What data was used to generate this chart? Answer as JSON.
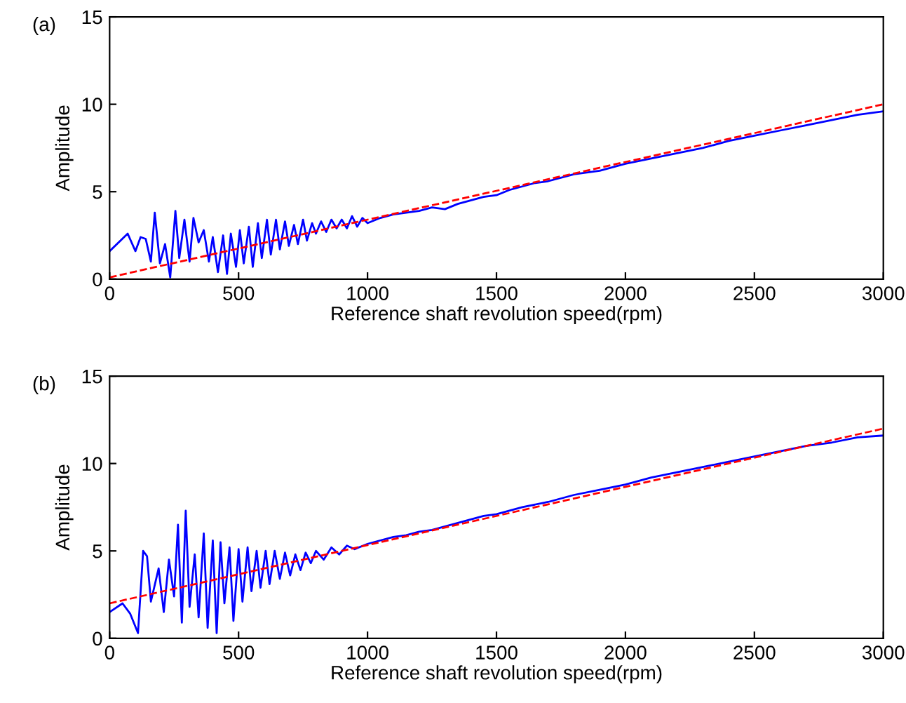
{
  "chart_data": [
    {
      "type": "line",
      "annotations": [
        "(a)"
      ],
      "xlabel": "Reference shaft revolution speed(rpm)",
      "ylabel": "Amplitude",
      "xlim": [
        0,
        3000
      ],
      "ylim": [
        0,
        15
      ],
      "xticks": [
        0,
        500,
        1000,
        1500,
        2000,
        2500,
        3000
      ],
      "yticks": [
        0,
        5,
        10,
        15
      ],
      "grid": false,
      "legend": false,
      "series": [
        {
          "color": "#0000ff",
          "line_style": "solid",
          "x": [
            0,
            70,
            100,
            120,
            140,
            160,
            175,
            195,
            215,
            235,
            255,
            270,
            290,
            310,
            325,
            345,
            365,
            385,
            400,
            420,
            440,
            455,
            470,
            490,
            505,
            520,
            540,
            555,
            575,
            590,
            610,
            625,
            645,
            660,
            680,
            695,
            715,
            730,
            750,
            765,
            785,
            800,
            820,
            840,
            860,
            880,
            900,
            920,
            940,
            960,
            980,
            1000,
            1050,
            1100,
            1150,
            1200,
            1250,
            1300,
            1350,
            1400,
            1450,
            1500,
            1550,
            1600,
            1650,
            1700,
            1800,
            1900,
            2000,
            2100,
            2200,
            2300,
            2400,
            2500,
            2600,
            2700,
            2800,
            2900,
            3000
          ],
          "values": [
            1.6,
            2.6,
            1.6,
            2.4,
            2.3,
            1.0,
            3.8,
            0.9,
            2.0,
            0.1,
            3.9,
            1.2,
            3.4,
            1.0,
            3.5,
            2.1,
            2.8,
            1.0,
            2.4,
            0.4,
            2.5,
            0.3,
            2.6,
            0.7,
            2.8,
            0.9,
            3.0,
            0.7,
            3.2,
            1.2,
            3.4,
            1.4,
            3.4,
            1.7,
            3.3,
            1.9,
            3.1,
            2.0,
            3.4,
            2.2,
            3.2,
            2.6,
            3.3,
            2.7,
            3.4,
            2.9,
            3.4,
            2.9,
            3.6,
            3.0,
            3.5,
            3.2,
            3.5,
            3.7,
            3.8,
            3.9,
            4.1,
            4.0,
            4.3,
            4.5,
            4.7,
            4.8,
            5.1,
            5.3,
            5.5,
            5.6,
            6.0,
            6.2,
            6.6,
            6.9,
            7.2,
            7.5,
            7.9,
            8.2,
            8.5,
            8.8,
            9.1,
            9.4,
            9.6
          ]
        },
        {
          "color": "#ff0000",
          "line_style": "dashed",
          "x": [
            0,
            3000
          ],
          "values": [
            0.1,
            10.0
          ]
        }
      ]
    },
    {
      "type": "line",
      "annotations": [
        "(b)"
      ],
      "xlabel": "Reference shaft revolution speed(rpm)",
      "ylabel": "Amplitude",
      "xlim": [
        0,
        3000
      ],
      "ylim": [
        0,
        15
      ],
      "xticks": [
        0,
        500,
        1000,
        1500,
        2000,
        2500,
        3000
      ],
      "yticks": [
        0,
        5,
        10,
        15
      ],
      "grid": false,
      "legend": false,
      "series": [
        {
          "color": "#0000ff",
          "line_style": "solid",
          "x": [
            0,
            50,
            80,
            110,
            130,
            145,
            160,
            190,
            210,
            230,
            250,
            265,
            280,
            295,
            310,
            330,
            345,
            365,
            380,
            400,
            415,
            430,
            445,
            465,
            480,
            500,
            515,
            535,
            550,
            570,
            585,
            605,
            620,
            640,
            660,
            680,
            700,
            720,
            740,
            760,
            780,
            800,
            830,
            860,
            890,
            920,
            950,
            1000,
            1050,
            1100,
            1150,
            1200,
            1250,
            1300,
            1350,
            1400,
            1450,
            1500,
            1600,
            1700,
            1800,
            1900,
            2000,
            2100,
            2200,
            2300,
            2400,
            2500,
            2600,
            2700,
            2800,
            2900,
            3000
          ],
          "values": [
            1.5,
            2.0,
            1.4,
            0.3,
            5.0,
            4.7,
            2.1,
            4.0,
            1.5,
            4.5,
            2.4,
            6.5,
            0.9,
            7.3,
            1.8,
            4.8,
            1.2,
            6.0,
            0.6,
            5.6,
            0.3,
            5.5,
            2.0,
            5.2,
            1.0,
            5.1,
            2.1,
            5.2,
            2.7,
            5.0,
            2.9,
            5.0,
            3.1,
            5.0,
            3.4,
            4.9,
            3.6,
            4.8,
            3.9,
            4.9,
            4.3,
            5.0,
            4.5,
            5.2,
            4.8,
            5.3,
            5.1,
            5.4,
            5.6,
            5.8,
            5.9,
            6.1,
            6.2,
            6.4,
            6.6,
            6.8,
            7.0,
            7.1,
            7.5,
            7.8,
            8.2,
            8.5,
            8.8,
            9.2,
            9.5,
            9.8,
            10.1,
            10.4,
            10.7,
            11.0,
            11.2,
            11.5,
            11.6
          ]
        },
        {
          "color": "#ff0000",
          "line_style": "dashed",
          "x": [
            0,
            3000
          ],
          "values": [
            2.0,
            12.0
          ]
        }
      ]
    }
  ]
}
